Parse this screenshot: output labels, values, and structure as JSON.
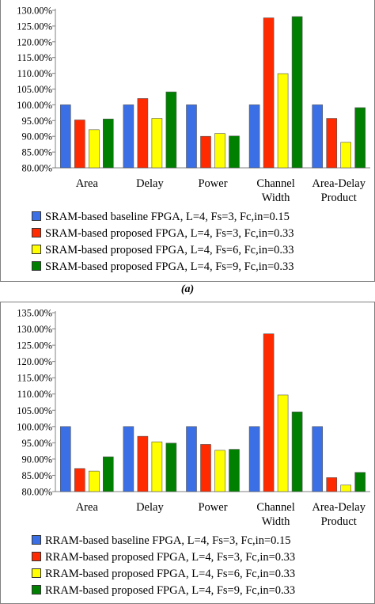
{
  "figure": {
    "caption_a": "(a)",
    "colors": [
      "#3b6fe6",
      "#ff2a00",
      "#ffff00",
      "#008000"
    ]
  },
  "chart_data": [
    {
      "type": "bar",
      "categories": [
        [
          "Area"
        ],
        [
          "Delay"
        ],
        [
          "Power"
        ],
        [
          "Channel",
          "Width"
        ],
        [
          "Area-Delay",
          "Product"
        ]
      ],
      "yticks": [
        "80.00%",
        "85.00%",
        "90.00%",
        "95.00%",
        "100.00%",
        "105.00%",
        "110.00%",
        "115.00%",
        "120.00%",
        "125.00%",
        "130.00%"
      ],
      "ylim": [
        80,
        130
      ],
      "grid": false,
      "legend_position": "bottom",
      "series": [
        {
          "name": "SRAM-based baseline FPGA, L=4, Fs=3, Fc,in=0.15",
          "values": [
            100,
            100,
            100,
            100,
            100
          ]
        },
        {
          "name": "SRAM-based proposed FPGA, L=4, Fs=3, Fc,in=0.33",
          "values": [
            95.2,
            102.0,
            90.0,
            127.6,
            95.7
          ]
        },
        {
          "name": "SRAM-based proposed FPGA, L=4, Fs=6, Fc,in=0.33",
          "values": [
            92.1,
            95.7,
            90.9,
            109.9,
            88.1
          ]
        },
        {
          "name": "SRAM-based proposed FPGA, L=4, Fs=9, Fc,in=0.33",
          "values": [
            95.5,
            104.1,
            90.1,
            128.0,
            99.1
          ]
        }
      ]
    },
    {
      "type": "bar",
      "categories": [
        [
          "Area"
        ],
        [
          "Delay"
        ],
        [
          "Power"
        ],
        [
          "Channel",
          "Width"
        ],
        [
          "Area-Delay",
          "Product"
        ]
      ],
      "yticks": [
        "80.00%",
        "85.00%",
        "90.00%",
        "95.00%",
        "100.00%",
        "105.00%",
        "110.00%",
        "115.00%",
        "120.00%",
        "125.00%",
        "130.00%",
        "135.00%"
      ],
      "ylim": [
        80,
        135
      ],
      "grid": false,
      "legend_position": "bottom",
      "series": [
        {
          "name": "RRAM-based baseline FPGA, L=4, Fs=3, Fc,in=0.15",
          "values": [
            100,
            100,
            100,
            100,
            100
          ]
        },
        {
          "name": "RRAM-based proposed FPGA, L=4, Fs=3, Fc,in=0.33",
          "values": [
            87.1,
            97.0,
            94.5,
            128.5,
            84.3
          ]
        },
        {
          "name": "RRAM-based proposed FPGA, L=4, Fs=6, Fc,in=0.33",
          "values": [
            86.3,
            95.3,
            92.7,
            109.7,
            82.0
          ]
        },
        {
          "name": "RRAM-based proposed FPGA, L=4, Fs=9, Fc,in=0.33",
          "values": [
            90.7,
            94.9,
            93.0,
            104.5,
            85.9
          ]
        }
      ]
    }
  ]
}
